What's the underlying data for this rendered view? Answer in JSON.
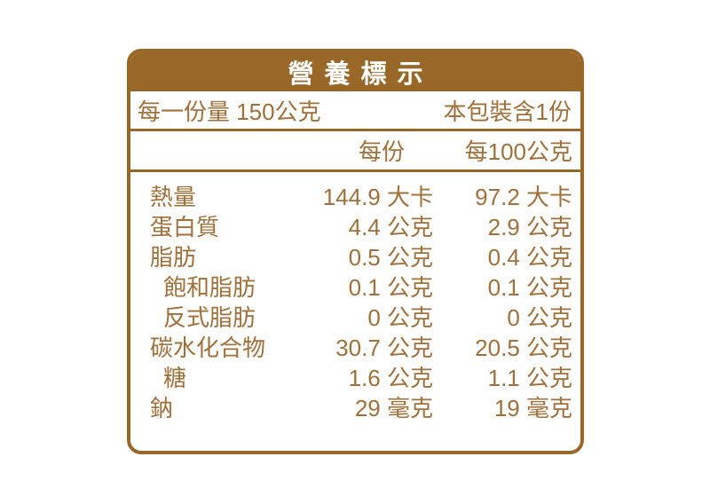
{
  "title": "營養標示",
  "serving_info": {
    "serving_size": "每一份量 150公克",
    "servings_per_package": "本包裝含1份"
  },
  "columns": {
    "per_serving": "每份",
    "per_100g": "每100公克"
  },
  "rows": [
    {
      "label": "熱量",
      "per_serving": "144.9 大卡",
      "per_100g": "97.2 大卡"
    },
    {
      "label": "蛋白質",
      "per_serving": "4.4 公克",
      "per_100g": "2.9 公克"
    },
    {
      "label": "脂肪",
      "per_serving": "0.5 公克",
      "per_100g": "0.4 公克"
    },
    {
      "label": "飽和脂肪",
      "per_serving": "0.1 公克",
      "per_100g": "0.1 公克"
    },
    {
      "label": "反式脂肪",
      "per_serving": "0 公克",
      "per_100g": "0 公克"
    },
    {
      "label": "碳水化合物",
      "per_serving": "30.7 公克",
      "per_100g": "20.5 公克"
    },
    {
      "label": "糖",
      "per_serving": "1.6 公克",
      "per_100g": "1.1 公克"
    },
    {
      "label": "鈉",
      "per_serving": "29 毫克",
      "per_100g": "19 毫克"
    }
  ],
  "colors": {
    "brown_fill": "#996828",
    "brown_text": "#a1703a",
    "header_text": "#ffffff",
    "background": "#ffffff"
  }
}
